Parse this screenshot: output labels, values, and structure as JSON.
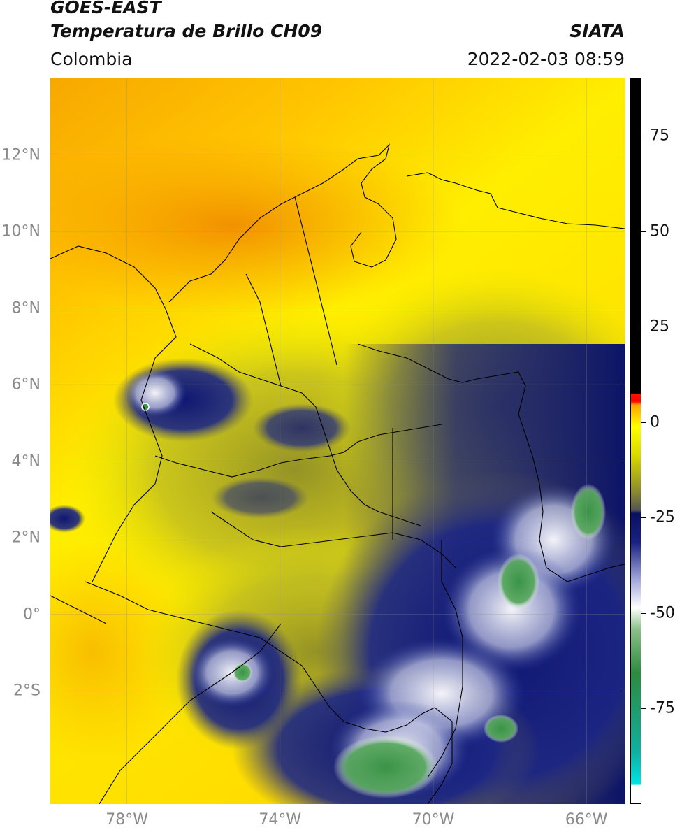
{
  "header": {
    "satellite": "GOES-EAST",
    "product": "Temperatura de Brillo CH09",
    "region": "Colombia",
    "institution": "SIATA",
    "datetime": "2022-02-03 08:59"
  },
  "map": {
    "lat_labels": [
      {
        "lat": 12,
        "text": "12°N"
      },
      {
        "lat": 10,
        "text": "10°N"
      },
      {
        "lat": 8,
        "text": "8°N"
      },
      {
        "lat": 6,
        "text": "6°N"
      },
      {
        "lat": 4,
        "text": "4°N"
      },
      {
        "lat": 2,
        "text": "2°N"
      },
      {
        "lat": 0,
        "text": "0°"
      },
      {
        "lat": -2,
        "text": "2°S"
      }
    ],
    "lon_labels": [
      {
        "lon": -78,
        "text": "78°W"
      },
      {
        "lon": -74,
        "text": "74°W"
      },
      {
        "lon": -70,
        "text": "70°W"
      },
      {
        "lon": -66,
        "text": "66°W"
      }
    ],
    "extent": {
      "lon_min": -80.0,
      "lon_max": -65.0,
      "lat_min": -4.95,
      "lat_max": 14.0
    },
    "colors": {
      "warm": "#f5a300",
      "mid": "#ffff00",
      "olive": "#8a8a2a",
      "navy": "#101a78",
      "white": "#f0f0f0",
      "green": "#3a9a48"
    }
  },
  "colorbar": {
    "ticks": [
      {
        "value": 75,
        "text": "75"
      },
      {
        "value": 50,
        "text": "50"
      },
      {
        "value": 25,
        "text": "25"
      },
      {
        "value": 0,
        "text": "0"
      },
      {
        "value": -25,
        "text": "-25"
      },
      {
        "value": -50,
        "text": "-50"
      },
      {
        "value": -75,
        "text": "-75"
      }
    ],
    "range": [
      -100,
      90
    ]
  }
}
